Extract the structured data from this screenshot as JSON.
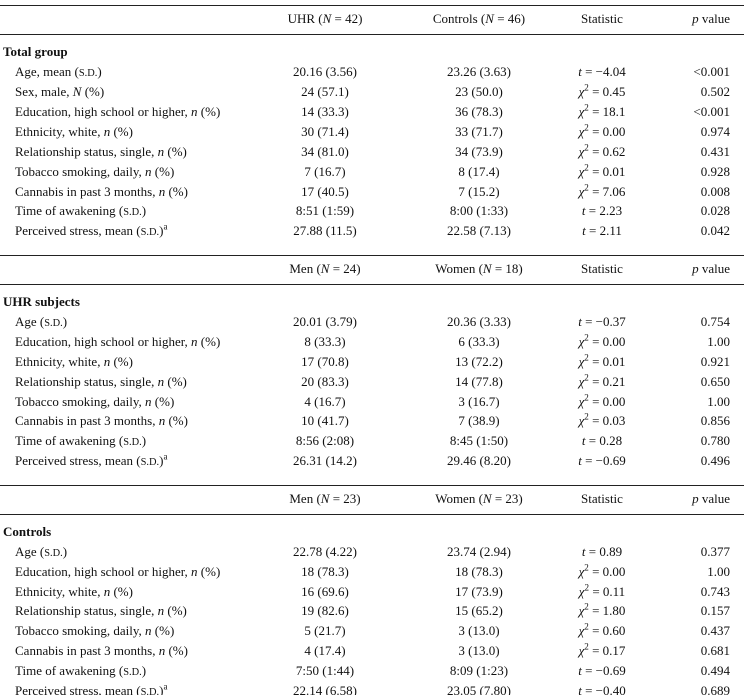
{
  "colors": {
    "rule": "#222222",
    "text": "#111111",
    "background": "#ffffff"
  },
  "table": {
    "sections": [
      {
        "title": "Total group",
        "columns": [
          "",
          "UHR (*N* = 42)",
          "Controls (*N* = 46)",
          "Statistic",
          "*p* value"
        ],
        "rows": [
          [
            "Age, mean (~S.D.~)",
            "20.16 (3.56)",
            "23.26 (3.63)",
            "*t* = −4.04",
            "<0.001"
          ],
          [
            "Sex, male, *N* (%)",
            "24 (57.1)",
            "23 (50.0)",
            "*χ*^2^ = 0.45",
            "0.502"
          ],
          [
            "Education, high school or higher, *n* (%)",
            "14 (33.3)",
            "36 (78.3)",
            "*χ*^2^ = 18.1",
            "<0.001"
          ],
          [
            "Ethnicity, white, *n* (%)",
            "30 (71.4)",
            "33 (71.7)",
            "*χ*^2^ = 0.00",
            "0.974"
          ],
          [
            "Relationship status, single, *n* (%)",
            "34 (81.0)",
            "34 (73.9)",
            "*χ*^2^ = 0.62",
            "0.431"
          ],
          [
            "Tobacco smoking, daily, *n* (%)",
            "7 (16.7)",
            "8 (17.4)",
            "*χ*^2^ = 0.01",
            "0.928"
          ],
          [
            "Cannabis in past 3 months, *n* (%)",
            "17 (40.5)",
            "7 (15.2)",
            "*χ*^2^ = 7.06",
            "0.008"
          ],
          [
            "Time of awakening (~S.D.~)",
            "8:51 (1:59)",
            "8:00 (1:33)",
            "*t* = 2.23",
            "0.028"
          ],
          [
            "Perceived stress, mean (~S.D.~)^a^",
            "27.88 (11.5)",
            "22.58 (7.13)",
            "*t* = 2.11",
            "0.042"
          ]
        ]
      },
      {
        "title": "UHR subjects",
        "columns": [
          "",
          "Men (*N* = 24)",
          "Women (*N* = 18)",
          "Statistic",
          "*p* value"
        ],
        "rows": [
          [
            "Age (~S.D.~)",
            "20.01 (3.79)",
            "20.36 (3.33)",
            "*t* = −0.37",
            "0.754"
          ],
          [
            "Education, high school or higher, *n* (%)",
            "8 (33.3)",
            "6 (33.3)",
            "*χ*^2^ = 0.00",
            "1.00"
          ],
          [
            "Ethnicity, white, *n* (%)",
            "17 (70.8)",
            "13 (72.2)",
            "*χ*^2^ = 0.01",
            "0.921"
          ],
          [
            "Relationship status, single, *n* (%)",
            "20 (83.3)",
            "14 (77.8)",
            "*χ*^2^ = 0.21",
            "0.650"
          ],
          [
            "Tobacco smoking, daily, *n* (%)",
            "4 (16.7)",
            "3 (16.7)",
            "*χ*^2^ = 0.00",
            "1.00"
          ],
          [
            "Cannabis in past 3 months, *n* (%)",
            "10 (41.7)",
            "7 (38.9)",
            "*χ*^2^ = 0.03",
            "0.856"
          ],
          [
            "Time of awakening (~S.D.~)",
            "8:56 (2:08)",
            "8:45 (1:50)",
            "*t* = 0.28",
            "0.780"
          ],
          [
            "Perceived stress, mean (~S.D.~)^a^",
            "26.31 (14.2)",
            "29.46 (8.20)",
            "*t* = −0.69",
            "0.496"
          ]
        ]
      },
      {
        "title": "Controls",
        "columns": [
          "",
          "Men (*N* = 23)",
          "Women (*N* = 23)",
          "Statistic",
          "*p* value"
        ],
        "rows": [
          [
            "Age (~S.D.~)",
            "22.78 (4.22)",
            "23.74 (2.94)",
            "*t* = 0.89",
            "0.377"
          ],
          [
            "Education, high school or higher, *n* (%)",
            "18 (78.3)",
            "18 (78.3)",
            "*χ*^2^ = 0.00",
            "1.00"
          ],
          [
            "Ethnicity, white, *n* (%)",
            "16 (69.6)",
            "17 (73.9)",
            "*χ*^2^ = 0.11",
            "0.743"
          ],
          [
            "Relationship status, single, *n* (%)",
            "19 (82.6)",
            "15 (65.2)",
            "*χ*^2^ = 1.80",
            "0.157"
          ],
          [
            "Tobacco smoking, daily, *n* (%)",
            "5 (21.7)",
            "3 (13.0)",
            "*χ*^2^ = 0.60",
            "0.437"
          ],
          [
            "Cannabis in past 3 months, *n* (%)",
            "4 (17.4)",
            "3 (13.0)",
            "*χ*^2^ = 0.17",
            "0.681"
          ],
          [
            "Time of awakening (~S.D.~)",
            "7:50 (1:44)",
            "8:09 (1:23)",
            "*t* = −0.69",
            "0.494"
          ],
          [
            "Perceived stress, mean (~S.D.~)^a^",
            "22.14 (6.58)",
            "23.05 (7.80)",
            "*t* = −0.40",
            "0.689"
          ]
        ]
      }
    ]
  }
}
